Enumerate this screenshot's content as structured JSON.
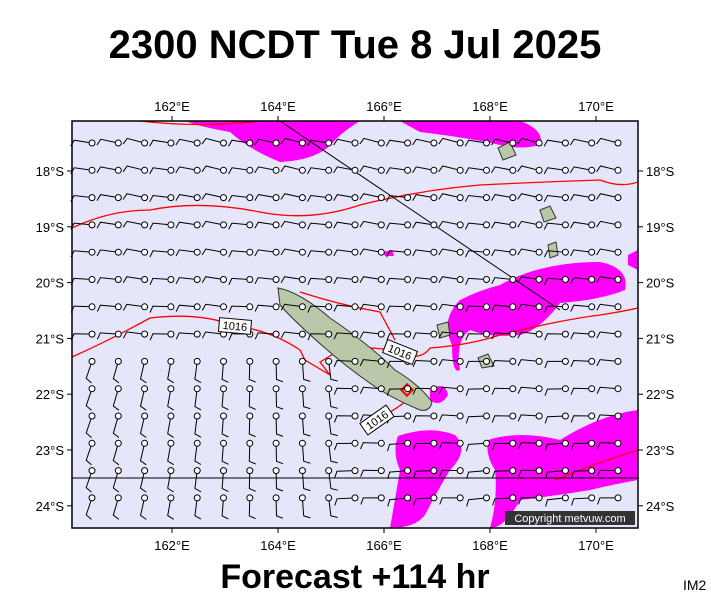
{
  "title": "2300 NCDT Tue 8 Jul 2025",
  "footer": "Forecast +114 hr",
  "corner": "IM2",
  "copyright": "Copyright metvuw.com",
  "lon_ticks": [
    {
      "value": 162,
      "label": "162°E"
    },
    {
      "value": 164,
      "label": "164°E"
    },
    {
      "value": 166,
      "label": "166°E"
    },
    {
      "value": 168,
      "label": "168°E"
    },
    {
      "value": 170,
      "label": "170°E"
    }
  ],
  "lat_ticks": [
    {
      "value": 18,
      "label": "18°S"
    },
    {
      "value": 19,
      "label": "19°S"
    },
    {
      "value": 20,
      "label": "20°S"
    },
    {
      "value": 21,
      "label": "21°S"
    },
    {
      "value": 22,
      "label": "22°S"
    },
    {
      "value": 23,
      "label": "23°S"
    },
    {
      "value": 24,
      "label": "24°S"
    }
  ],
  "isobar_labels": [
    "1016",
    "1016",
    "1016"
  ]
}
